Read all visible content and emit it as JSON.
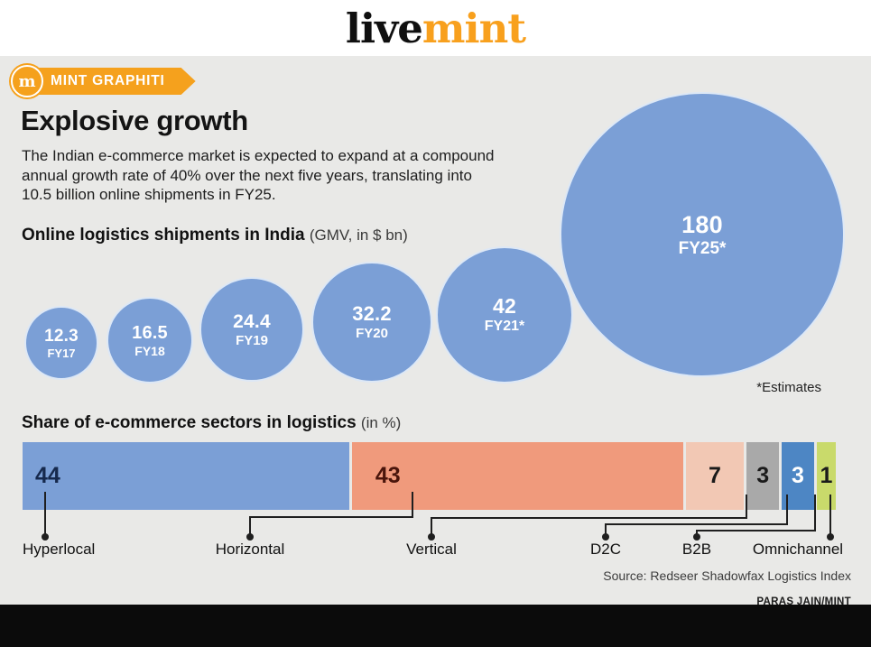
{
  "masthead": {
    "live": "live",
    "mint": "mint"
  },
  "badge": {
    "monogram": "m",
    "label": "MINT GRAPHITI"
  },
  "title": "Explosive growth",
  "intro_lines": [
    "The Indian e-commerce market is expected to expand at a compound",
    "annual growth rate of 40% over the next five years, translating into",
    "10.5 billion online shipments in FY25."
  ],
  "bubble_section": {
    "heading": "Online logistics shipments in India",
    "unit": "(GMV, in $ bn)",
    "footnote": "*Estimates"
  },
  "bar_section": {
    "heading": "Share of e-commerce sectors in logistics",
    "unit": "(in %)"
  },
  "source": "Source: Redseer Shadowfax Logistics Index",
  "credit": "PARAS JAIN/MINT",
  "colors": {
    "accent_orange": "#f5a11d",
    "bubble_blue": "#7b9fd6",
    "background": "#e9e9e7"
  },
  "chart_data": [
    {
      "type": "bubble",
      "title": "Online logistics shipments in India (GMV, in $ bn)",
      "points": [
        {
          "label": "FY17",
          "value": 12.3
        },
        {
          "label": "FY18",
          "value": 16.5
        },
        {
          "label": "FY19",
          "value": 24.4
        },
        {
          "label": "FY20",
          "value": 32.2
        },
        {
          "label": "FY21*",
          "value": 42
        },
        {
          "label": "FY25*",
          "value": 180
        }
      ],
      "note": "*Estimates",
      "bubble_color": "#7b9fd6"
    },
    {
      "type": "bar",
      "stacked": true,
      "title": "Share of e-commerce sectors in logistics (in %)",
      "categories": [
        "Hyperlocal",
        "Horizontal",
        "Vertical",
        "D2C",
        "B2B",
        "Omnichannel"
      ],
      "values": [
        44,
        43,
        7,
        3,
        3,
        1
      ],
      "segment_colors": [
        "#7b9fd6",
        "#f09a7c",
        "#f2c8b4",
        "#a9a9a9",
        "#4d86c4",
        "#c9da6b"
      ],
      "value_colors": [
        "#16294d",
        "#4a150b",
        "#1a1a1a",
        "#1a1a1a",
        "#ffffff",
        "#1a1a1a"
      ]
    }
  ]
}
